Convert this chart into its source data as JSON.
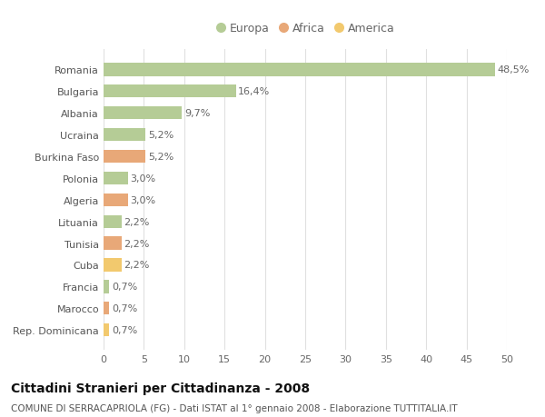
{
  "countries": [
    "Romania",
    "Bulgaria",
    "Albania",
    "Ucraina",
    "Burkina Faso",
    "Polonia",
    "Algeria",
    "Lituania",
    "Tunisia",
    "Cuba",
    "Francia",
    "Marocco",
    "Rep. Dominicana"
  ],
  "values": [
    48.5,
    16.4,
    9.7,
    5.2,
    5.2,
    3.0,
    3.0,
    2.2,
    2.2,
    2.2,
    0.7,
    0.7,
    0.7
  ],
  "labels": [
    "48,5%",
    "16,4%",
    "9,7%",
    "5,2%",
    "5,2%",
    "3,0%",
    "3,0%",
    "2,2%",
    "2,2%",
    "2,2%",
    "0,7%",
    "0,7%",
    "0,7%"
  ],
  "continents": [
    "Europa",
    "Europa",
    "Europa",
    "Europa",
    "Africa",
    "Europa",
    "Africa",
    "Europa",
    "Africa",
    "America",
    "Europa",
    "Africa",
    "America"
  ],
  "colors": {
    "Europa": "#b5cc96",
    "Africa": "#e8a878",
    "America": "#f2c96e"
  },
  "legend_labels": [
    "Europa",
    "Africa",
    "America"
  ],
  "xlim": [
    0,
    50
  ],
  "xticks": [
    0,
    5,
    10,
    15,
    20,
    25,
    30,
    35,
    40,
    45,
    50
  ],
  "title": "Cittadini Stranieri per Cittadinanza - 2008",
  "subtitle": "COMUNE DI SERRACAPRIOLA (FG) - Dati ISTAT al 1° gennaio 2008 - Elaborazione TUTTITALIA.IT",
  "background_color": "#ffffff",
  "grid_color": "#e0e0e0",
  "bar_height": 0.6,
  "label_fontsize": 8.0,
  "tick_fontsize": 8.0,
  "title_fontsize": 10.0,
  "subtitle_fontsize": 7.5,
  "legend_fontsize": 9.0
}
